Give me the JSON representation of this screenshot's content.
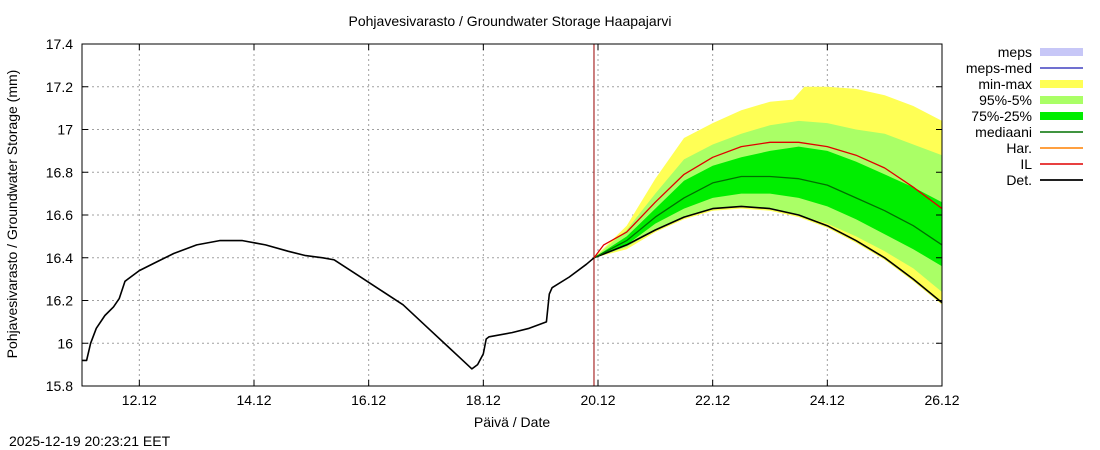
{
  "chart_data": {
    "type": "area",
    "title": "Pohjavesivarasto / Groundwater Storage   Haapajarvi",
    "xlabel": "Päivä / Date",
    "ylabel": "Pohjavesivarasto / Groundwater Storage (mm)",
    "timestamp": "2025-12-19 20:23:21 EET",
    "xlim": [
      0,
      15
    ],
    "ylim": [
      15.8,
      17.4
    ],
    "x_unit": "days since 2025-12-11 00:00",
    "grid": true,
    "forecast_start": 8.93,
    "xticks": [
      {
        "x": 1,
        "label": "12.12"
      },
      {
        "x": 3,
        "label": "14.12"
      },
      {
        "x": 5,
        "label": "16.12"
      },
      {
        "x": 7,
        "label": "18.12"
      },
      {
        "x": 9,
        "label": "20.12"
      },
      {
        "x": 11,
        "label": "22.12"
      },
      {
        "x": 13,
        "label": "24.12"
      },
      {
        "x": 15,
        "label": "26.12"
      }
    ],
    "yticks": [
      {
        "y": 15.8,
        "label": "15.8"
      },
      {
        "y": 16.0,
        "label": "16"
      },
      {
        "y": 16.2,
        "label": "16.2"
      },
      {
        "y": 16.4,
        "label": "16.4"
      },
      {
        "y": 16.6,
        "label": "16.6"
      },
      {
        "y": 16.8,
        "label": "16.8"
      },
      {
        "y": 17.0,
        "label": "17"
      },
      {
        "y": 17.2,
        "label": "17.2"
      },
      {
        "y": 17.4,
        "label": "17.4"
      }
    ],
    "legend": {
      "position": "right",
      "entries": [
        {
          "label": "meps",
          "kind": "box",
          "color": "#c7c7f7"
        },
        {
          "label": "meps-med",
          "kind": "line",
          "color": "#4040c0"
        },
        {
          "label": "min-max",
          "kind": "box",
          "color": "#ffff55"
        },
        {
          "label": "95%-5%",
          "kind": "box",
          "color": "#aaff66"
        },
        {
          "label": "75%-25%",
          "kind": "box",
          "color": "#00ee00"
        },
        {
          "label": "mediaani",
          "kind": "line",
          "color": "#007000"
        },
        {
          "label": "Har.",
          "kind": "line",
          "color": "#ff8000"
        },
        {
          "label": "IL",
          "kind": "line",
          "color": "#e00000"
        },
        {
          "label": "Det.",
          "kind": "line",
          "color": "#000000"
        }
      ]
    },
    "colors": {
      "minmax": "#ffff55",
      "p95_5": "#aaff66",
      "p75_25": "#00ee00",
      "median": "#007000",
      "il": "#e00000",
      "det": "#000000",
      "vline": "#990000",
      "grid": "#a0a0a0"
    },
    "series": [
      {
        "name": "Det. (observed)",
        "color": "#000000",
        "points": [
          [
            0.0,
            15.92
          ],
          [
            0.08,
            15.92
          ],
          [
            0.15,
            16.0
          ],
          [
            0.25,
            16.07
          ],
          [
            0.4,
            16.13
          ],
          [
            0.55,
            16.17
          ],
          [
            0.65,
            16.21
          ],
          [
            0.75,
            16.29
          ],
          [
            1.0,
            16.34
          ],
          [
            1.3,
            16.38
          ],
          [
            1.6,
            16.42
          ],
          [
            2.0,
            16.46
          ],
          [
            2.4,
            16.48
          ],
          [
            2.8,
            16.48
          ],
          [
            3.2,
            16.46
          ],
          [
            3.6,
            16.43
          ],
          [
            3.9,
            16.41
          ],
          [
            4.2,
            16.4
          ],
          [
            4.4,
            16.39
          ],
          [
            4.8,
            16.32
          ],
          [
            5.2,
            16.25
          ],
          [
            5.6,
            16.18
          ],
          [
            6.0,
            16.08
          ],
          [
            6.4,
            15.98
          ],
          [
            6.6,
            15.93
          ],
          [
            6.8,
            15.88
          ],
          [
            6.9,
            15.9
          ],
          [
            7.0,
            15.95
          ],
          [
            7.05,
            16.02
          ],
          [
            7.1,
            16.03
          ],
          [
            7.5,
            16.05
          ],
          [
            7.8,
            16.07
          ],
          [
            8.0,
            16.09
          ],
          [
            8.1,
            16.1
          ],
          [
            8.15,
            16.23
          ],
          [
            8.2,
            16.26
          ],
          [
            8.5,
            16.31
          ],
          [
            8.8,
            16.37
          ],
          [
            8.93,
            16.4
          ]
        ]
      },
      {
        "name": "Det. (forecast)",
        "color": "#000000",
        "points": [
          [
            8.93,
            16.4
          ],
          [
            9.5,
            16.46
          ],
          [
            10.0,
            16.53
          ],
          [
            10.5,
            16.59
          ],
          [
            11.0,
            16.63
          ],
          [
            11.5,
            16.64
          ],
          [
            12.0,
            16.63
          ],
          [
            12.5,
            16.6
          ],
          [
            13.0,
            16.55
          ],
          [
            13.5,
            16.48
          ],
          [
            14.0,
            16.4
          ],
          [
            14.5,
            16.3
          ],
          [
            15.0,
            16.19
          ]
        ]
      },
      {
        "name": "mediaani",
        "color": "#007000",
        "points": [
          [
            8.93,
            16.4
          ],
          [
            9.5,
            16.48
          ],
          [
            10.0,
            16.59
          ],
          [
            10.5,
            16.68
          ],
          [
            11.0,
            16.75
          ],
          [
            11.5,
            16.78
          ],
          [
            12.0,
            16.78
          ],
          [
            12.5,
            16.77
          ],
          [
            13.0,
            16.74
          ],
          [
            13.5,
            16.68
          ],
          [
            14.0,
            16.62
          ],
          [
            14.5,
            16.55
          ],
          [
            15.0,
            16.46
          ]
        ]
      },
      {
        "name": "IL",
        "color": "#e00000",
        "points": [
          [
            8.93,
            16.4
          ],
          [
            9.1,
            16.46
          ],
          [
            9.5,
            16.52
          ],
          [
            10.0,
            16.66
          ],
          [
            10.5,
            16.79
          ],
          [
            11.0,
            16.87
          ],
          [
            11.5,
            16.92
          ],
          [
            12.0,
            16.94
          ],
          [
            12.5,
            16.94
          ],
          [
            13.0,
            16.92
          ],
          [
            13.5,
            16.88
          ],
          [
            14.0,
            16.82
          ],
          [
            14.5,
            16.73
          ],
          [
            15.0,
            16.63
          ]
        ]
      }
    ],
    "bands": [
      {
        "name": "min-max",
        "color": "#ffff55",
        "upper": [
          [
            8.93,
            16.4
          ],
          [
            9.5,
            16.55
          ],
          [
            10.0,
            16.77
          ],
          [
            10.5,
            16.96
          ],
          [
            11.0,
            17.03
          ],
          [
            11.5,
            17.09
          ],
          [
            12.0,
            17.13
          ],
          [
            12.4,
            17.14
          ],
          [
            12.6,
            17.2
          ],
          [
            13.0,
            17.2
          ],
          [
            13.5,
            17.19
          ],
          [
            14.0,
            17.16
          ],
          [
            14.5,
            17.11
          ],
          [
            15.0,
            17.04
          ]
        ],
        "lower": [
          [
            8.93,
            16.4
          ],
          [
            9.5,
            16.44
          ],
          [
            10.0,
            16.52
          ],
          [
            10.5,
            16.58
          ],
          [
            11.0,
            16.62
          ],
          [
            11.5,
            16.63
          ],
          [
            12.0,
            16.62
          ],
          [
            12.5,
            16.59
          ],
          [
            13.0,
            16.54
          ],
          [
            13.5,
            16.47
          ],
          [
            14.0,
            16.39
          ],
          [
            14.5,
            16.29
          ],
          [
            15.0,
            16.18
          ]
        ]
      },
      {
        "name": "95%-5%",
        "color": "#aaff66",
        "upper": [
          [
            8.93,
            16.4
          ],
          [
            9.5,
            16.53
          ],
          [
            10.0,
            16.7
          ],
          [
            10.5,
            16.86
          ],
          [
            11.0,
            16.93
          ],
          [
            11.5,
            16.98
          ],
          [
            12.0,
            17.02
          ],
          [
            12.5,
            17.04
          ],
          [
            13.0,
            17.03
          ],
          [
            13.5,
            17.0
          ],
          [
            14.0,
            16.98
          ],
          [
            14.5,
            16.93
          ],
          [
            15.0,
            16.88
          ]
        ],
        "lower": [
          [
            8.93,
            16.4
          ],
          [
            9.5,
            16.45
          ],
          [
            10.0,
            16.53
          ],
          [
            10.5,
            16.59
          ],
          [
            11.0,
            16.63
          ],
          [
            11.5,
            16.64
          ],
          [
            12.0,
            16.63
          ],
          [
            12.5,
            16.6
          ],
          [
            13.0,
            16.56
          ],
          [
            13.5,
            16.5
          ],
          [
            14.0,
            16.43
          ],
          [
            14.5,
            16.35
          ],
          [
            15.0,
            16.24
          ]
        ]
      },
      {
        "name": "75%-25%",
        "color": "#00ee00",
        "upper": [
          [
            8.93,
            16.4
          ],
          [
            9.5,
            16.5
          ],
          [
            10.0,
            16.63
          ],
          [
            10.5,
            16.76
          ],
          [
            11.0,
            16.83
          ],
          [
            11.5,
            16.87
          ],
          [
            12.0,
            16.9
          ],
          [
            12.5,
            16.92
          ],
          [
            13.0,
            16.9
          ],
          [
            13.5,
            16.85
          ],
          [
            14.0,
            16.79
          ],
          [
            14.5,
            16.73
          ],
          [
            15.0,
            16.66
          ]
        ],
        "lower": [
          [
            8.93,
            16.4
          ],
          [
            9.5,
            16.46
          ],
          [
            10.0,
            16.56
          ],
          [
            10.5,
            16.63
          ],
          [
            11.0,
            16.68
          ],
          [
            11.5,
            16.7
          ],
          [
            12.0,
            16.7
          ],
          [
            12.5,
            16.68
          ],
          [
            13.0,
            16.64
          ],
          [
            13.5,
            16.58
          ],
          [
            14.0,
            16.51
          ],
          [
            14.5,
            16.44
          ],
          [
            15.0,
            16.36
          ]
        ]
      }
    ]
  }
}
